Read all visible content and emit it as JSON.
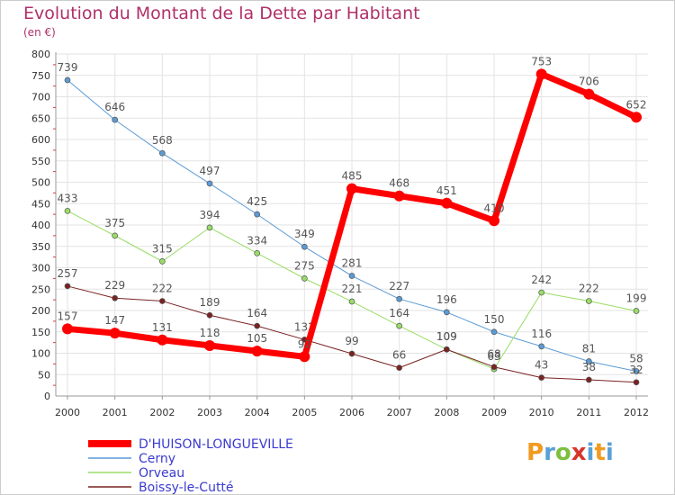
{
  "title": "Evolution du Montant de la Dette par Habitant",
  "subtitle": "(en €)",
  "logo_text": "Proxiti",
  "chart_data": {
    "type": "line",
    "title": "Evolution du Montant de la Dette par Habitant",
    "subtitle": "(en €)",
    "x": [
      "2000",
      "2001",
      "2002",
      "2003",
      "2004",
      "2005",
      "2006",
      "2007",
      "2008",
      "2009",
      "2010",
      "2011",
      "2012"
    ],
    "ylim": [
      0,
      800
    ],
    "yticks": [
      0,
      50,
      100,
      150,
      200,
      250,
      300,
      350,
      400,
      450,
      500,
      550,
      600,
      650,
      700,
      750,
      800
    ],
    "grid": true,
    "legend_position": "bottom-left",
    "series": [
      {
        "name": "D'HUISON-LONGUEVILLE",
        "color": "#ff0000",
        "width": 7,
        "values": [
          157,
          147,
          131,
          118,
          105,
          92,
          485,
          468,
          451,
          410,
          753,
          706,
          652
        ]
      },
      {
        "name": "Cerny",
        "color": "#5b9bd5",
        "width": 1,
        "values": [
          739,
          646,
          568,
          497,
          425,
          349,
          281,
          227,
          196,
          150,
          116,
          81,
          58
        ]
      },
      {
        "name": "Orveau",
        "color": "#99dd66",
        "width": 1,
        "values": [
          433,
          375,
          315,
          394,
          334,
          275,
          221,
          164,
          109,
          63,
          242,
          222,
          199
        ]
      },
      {
        "name": "Boissy-le-Cutté",
        "color": "#7a2222",
        "width": 1,
        "values": [
          257,
          229,
          222,
          189,
          164,
          132,
          99,
          66,
          109,
          68,
          43,
          38,
          32
        ]
      }
    ]
  }
}
